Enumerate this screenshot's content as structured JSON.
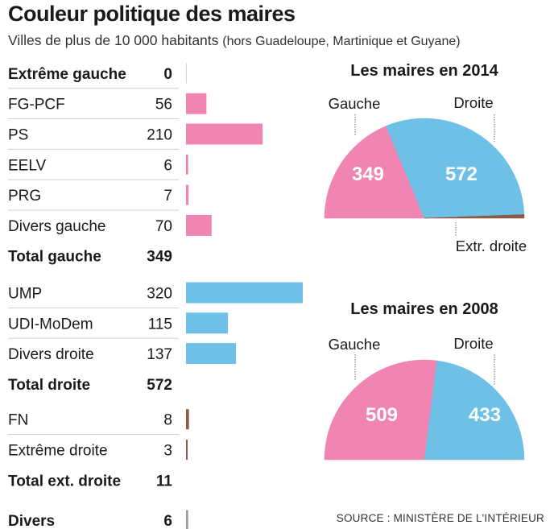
{
  "header": {
    "title": "Couleur politique des maires",
    "subtitle_main": "Villes de plus de 10 000 habitants",
    "subtitle_paren": "(hors Guadeloupe, Martinique et Guyane)"
  },
  "source": "SOURCE : MINISTÈRE DE L'INTÉRIEUR",
  "colors": {
    "gauche": "#f084b3",
    "droite": "#6ec0e6",
    "extr_droite": "#8b5a45",
    "divers": "#9a9a9a"
  },
  "chart_data": [
    {
      "type": "bar",
      "title": "Couleur politique des maires",
      "rows": [
        {
          "label": "Extrême gauche",
          "value": 0,
          "group": "gauche",
          "bold": true
        },
        {
          "label": "FG-PCF",
          "value": 56,
          "group": "gauche",
          "bold": false
        },
        {
          "label": "PS",
          "value": 210,
          "group": "gauche",
          "bold": false
        },
        {
          "label": "EELV",
          "value": 6,
          "group": "gauche",
          "bold": false
        },
        {
          "label": "PRG",
          "value": 7,
          "group": "gauche",
          "bold": false
        },
        {
          "label": "Divers gauche",
          "value": 70,
          "group": "gauche",
          "bold": false
        },
        {
          "label": "Total gauche",
          "value": 349,
          "group": "total",
          "bold": true
        },
        {
          "label": "UMP",
          "value": 320,
          "group": "droite",
          "bold": false
        },
        {
          "label": "UDI-MoDem",
          "value": 115,
          "group": "droite",
          "bold": false
        },
        {
          "label": "Divers droite",
          "value": 137,
          "group": "droite",
          "bold": false
        },
        {
          "label": "Total droite",
          "value": 572,
          "group": "total",
          "bold": true
        },
        {
          "label": "FN",
          "value": 8,
          "group": "extr_droite",
          "bold": false
        },
        {
          "label": "Extrême droite",
          "value": 3,
          "group": "extr_droite",
          "bold": false
        },
        {
          "label": "Total ext. droite",
          "value": 11,
          "group": "total",
          "bold": true
        },
        {
          "label": "Divers",
          "value": 6,
          "group": "divers",
          "bold": true
        }
      ],
      "xlim": [
        0,
        320
      ]
    },
    {
      "type": "pie",
      "title": "Les maires en 2014",
      "slices": [
        {
          "label": "Gauche",
          "value": 349,
          "color": "#f084b3"
        },
        {
          "label": "Droite",
          "value": 572,
          "color": "#6ec0e6"
        },
        {
          "label": "Extr. droite",
          "value": 11,
          "color": "#8b5a45"
        }
      ]
    },
    {
      "type": "pie",
      "title": "Les maires en 2008",
      "slices": [
        {
          "label": "Gauche",
          "value": 509,
          "color": "#f084b3"
        },
        {
          "label": "Droite",
          "value": 433,
          "color": "#6ec0e6"
        }
      ]
    }
  ]
}
